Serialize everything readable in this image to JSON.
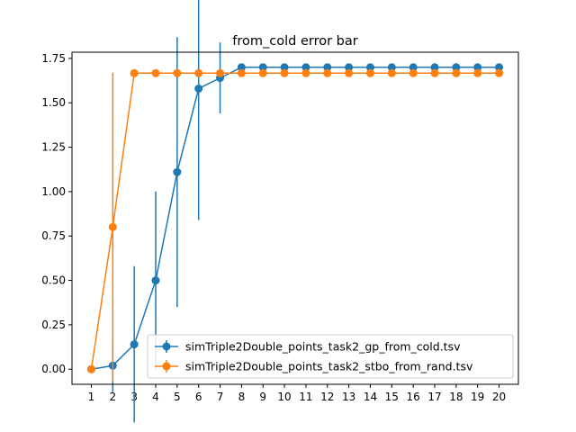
{
  "chart_data": {
    "type": "line",
    "title": "from_cold error bar",
    "xlabel": "",
    "ylabel": "",
    "x": [
      1,
      2,
      3,
      4,
      5,
      6,
      7,
      8,
      9,
      10,
      11,
      12,
      13,
      14,
      15,
      16,
      17,
      18,
      19,
      20
    ],
    "xlim": [
      0.1,
      20.9
    ],
    "ylim": [
      -0.085,
      1.785
    ],
    "yticks": [
      0.0,
      0.25,
      0.5,
      0.75,
      1.0,
      1.25,
      1.5,
      1.75
    ],
    "ytick_labels": [
      "0.00",
      "0.25",
      "0.50",
      "0.75",
      "1.00",
      "1.25",
      "1.50",
      "1.75"
    ],
    "grid": false,
    "legend_position": "lower-right",
    "series": [
      {
        "name": "simTriple2Double_points_task2_gp_from_cold.tsv",
        "color": "#1f77b4",
        "values": [
          0.0,
          0.02,
          0.14,
          0.5,
          1.11,
          1.58,
          1.64,
          1.7,
          1.7,
          1.7,
          1.7,
          1.7,
          1.7,
          1.7,
          1.7,
          1.7,
          1.7,
          1.7,
          1.7,
          1.7
        ],
        "err": [
          0.0,
          0.15,
          0.44,
          0.5,
          0.76,
          0.74,
          0.2,
          0.0,
          0.0,
          0.0,
          0.0,
          0.0,
          0.0,
          0.0,
          0.0,
          0.0,
          0.0,
          0.0,
          0.0,
          0.0
        ]
      },
      {
        "name": "simTriple2Double_points_task2_stbo_from_rand.tsv",
        "color": "#ff7f0e",
        "values": [
          0.0,
          0.8,
          1.667,
          1.667,
          1.667,
          1.667,
          1.667,
          1.667,
          1.667,
          1.667,
          1.667,
          1.667,
          1.667,
          1.667,
          1.667,
          1.667,
          1.667,
          1.667,
          1.667,
          1.667
        ],
        "err": [
          0.0,
          0.87,
          0.0,
          0.0,
          0.0,
          0.0,
          0.0,
          0.0,
          0.0,
          0.0,
          0.0,
          0.0,
          0.0,
          0.0,
          0.0,
          0.0,
          0.0,
          0.0,
          0.0,
          0.0
        ]
      }
    ]
  }
}
